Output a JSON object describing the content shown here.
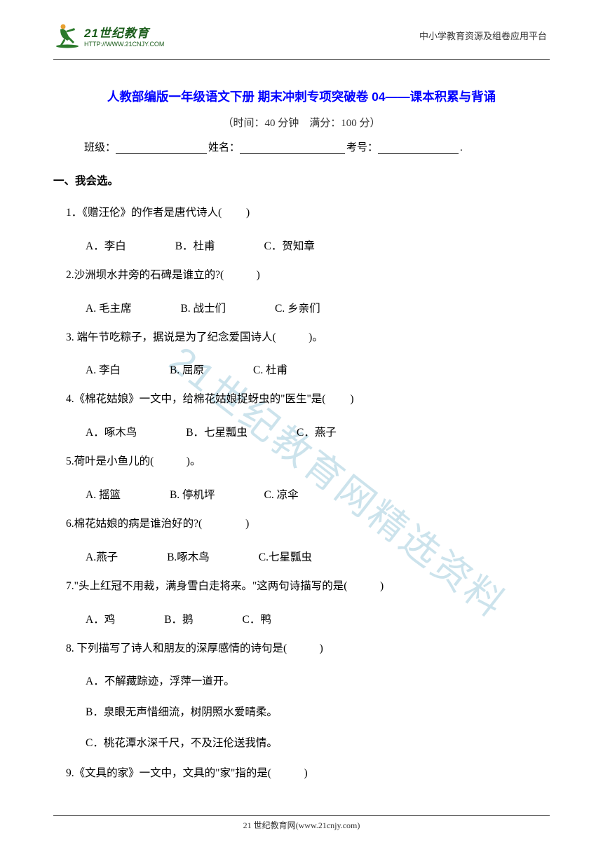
{
  "header": {
    "logo_main": "21世纪教育",
    "logo_sub": "HTTP://WWW.21CNJY.COM",
    "right_text": "中小学教育资源及组卷应用平台"
  },
  "title": "人教部编版一年级语文下册 期末冲刺专项突破卷 04——课本积累与背诵",
  "subtitle": "（时间：40 分钟　满分：100 分）",
  "info": {
    "class_label": "班级：",
    "name_label": "姓名：",
    "id_label": "考号：",
    "period": "."
  },
  "section_title": "一、我会选。",
  "questions": [
    {
      "q": "1．《赠汪伦》的作者是唐代诗人(　　 )",
      "opts": [
        "A．李白",
        "B．杜甫",
        "C．贺知章"
      ]
    },
    {
      "q": "2.沙洲坝水井旁的石碑是谁立的?(　　　)",
      "opts": [
        "A. 毛主席",
        "B. 战士们",
        "C. 乡亲们"
      ]
    },
    {
      "q": "3. 端午节吃粽子，据说是为了纪念爱国诗人(　　　)。",
      "opts": [
        "A. 李白",
        "B. 屈原",
        "C. 杜甫"
      ]
    },
    {
      "q": "4.《棉花姑娘》一文中，给棉花姑娘捉蚜虫的\"医生\"是(　　 )",
      "opts": [
        "A．啄木鸟",
        "B．七星瓢虫",
        "C．燕子"
      ]
    },
    {
      "q": "5.荷叶是小鱼儿的(　　　)。",
      "opts": [
        "A. 摇篮",
        "B. 停机坪",
        "C. 凉伞"
      ]
    },
    {
      "q": "6.棉花姑娘的病是谁治好的?(　　　　)",
      "opts": [
        "A.燕子",
        "B.啄木鸟",
        "C.七星瓢虫"
      ]
    },
    {
      "q": "7.\"头上红冠不用裁，满身雪白走将来。\"这两句诗描写的是(　　　)",
      "opts": [
        "A．鸡",
        "B．鹅",
        "C．鸭"
      ]
    },
    {
      "q": "8. 下列描写了诗人和朋友的深厚感情的诗句是(　　　)",
      "opts_col": [
        "A．不解藏踪迹，浮萍一道开。",
        "B．泉眼无声惜细流，树阴照水爱晴柔。",
        "C．桃花潭水深千尺，不及汪伦送我情。"
      ]
    },
    {
      "q": "9.《文具的家》一文中，文具的\"家\"指的是(　　　)"
    }
  ],
  "watermark": "21世纪教育网精选资料",
  "footer": "21 世纪教育网(www.21cnjy.com)",
  "colors": {
    "title_color": "#0000ff",
    "logo_color": "#1a5c1a",
    "watermark_color": "rgba(110, 175, 200, 0.35)",
    "text_color": "#000000"
  }
}
